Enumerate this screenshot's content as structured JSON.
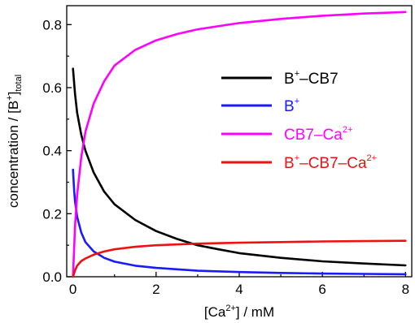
{
  "chart_data": {
    "type": "line",
    "xlabel": {
      "pre": "[Ca",
      "sup": "2+",
      "post": "] / mM"
    },
    "ylabel": {
      "pre": "concentration / [B",
      "sup": "+",
      "post": "]",
      "sub": "total"
    },
    "xlim": [
      -0.15,
      8.15
    ],
    "ylim": [
      0,
      0.86
    ],
    "x_ticks": [
      0,
      2,
      4,
      6,
      8
    ],
    "x_tick_labels": [
      "0",
      "2",
      "4",
      "6",
      "8"
    ],
    "y_ticks": [
      0.0,
      0.2,
      0.4,
      0.6,
      0.8
    ],
    "y_tick_labels": [
      "0.0",
      "0.2",
      "0.4",
      "0.6",
      "0.8"
    ],
    "grid": false,
    "legend_position": "right",
    "series": [
      {
        "name": "B+–CB7",
        "label": {
          "base": "B",
          "sup": "+",
          "tail": "–CB7",
          "sup2": ""
        },
        "color": "#000000",
        "x": [
          0,
          0.05,
          0.1,
          0.2,
          0.3,
          0.5,
          0.75,
          1,
          1.5,
          2,
          2.5,
          3,
          3.5,
          4,
          5,
          6,
          7,
          8
        ],
        "y": [
          0.66,
          0.58,
          0.52,
          0.45,
          0.4,
          0.33,
          0.27,
          0.23,
          0.18,
          0.145,
          0.12,
          0.1,
          0.087,
          0.075,
          0.06,
          0.049,
          0.042,
          0.036
        ]
      },
      {
        "name": "B+",
        "label": {
          "base": "B",
          "sup": "+",
          "tail": "",
          "sup2": ""
        },
        "color": "#1a1aff",
        "x": [
          0,
          0.03,
          0.05,
          0.1,
          0.2,
          0.3,
          0.5,
          0.75,
          1,
          1.5,
          2,
          3,
          4,
          5,
          6,
          7,
          8
        ],
        "y": [
          0.34,
          0.27,
          0.24,
          0.19,
          0.14,
          0.11,
          0.08,
          0.06,
          0.048,
          0.035,
          0.028,
          0.019,
          0.015,
          0.012,
          0.01,
          0.009,
          0.008
        ]
      },
      {
        "name": "CB7–Ca2+",
        "label": {
          "base": "CB7–Ca",
          "sup": "2+",
          "tail": "",
          "sup2": ""
        },
        "color": "#ff00ff",
        "x": [
          0,
          0.05,
          0.1,
          0.2,
          0.3,
          0.5,
          0.75,
          1,
          1.5,
          2,
          2.5,
          3,
          4,
          5,
          6,
          7,
          8
        ],
        "y": [
          0.0,
          0.16,
          0.26,
          0.38,
          0.46,
          0.55,
          0.62,
          0.67,
          0.72,
          0.75,
          0.77,
          0.785,
          0.805,
          0.818,
          0.828,
          0.835,
          0.84
        ]
      },
      {
        "name": "B+–CB7–Ca2+",
        "label": {
          "base": "B",
          "sup": "+",
          "tail": "–CB7–Ca",
          "sup2": "2+"
        },
        "color": "#ee1111",
        "x": [
          0,
          0.05,
          0.1,
          0.2,
          0.3,
          0.5,
          0.75,
          1,
          1.5,
          2,
          3,
          4,
          5,
          6,
          7,
          8
        ],
        "y": [
          0.0,
          0.02,
          0.035,
          0.05,
          0.058,
          0.07,
          0.08,
          0.087,
          0.095,
          0.1,
          0.105,
          0.108,
          0.11,
          0.112,
          0.113,
          0.114
        ]
      }
    ]
  }
}
